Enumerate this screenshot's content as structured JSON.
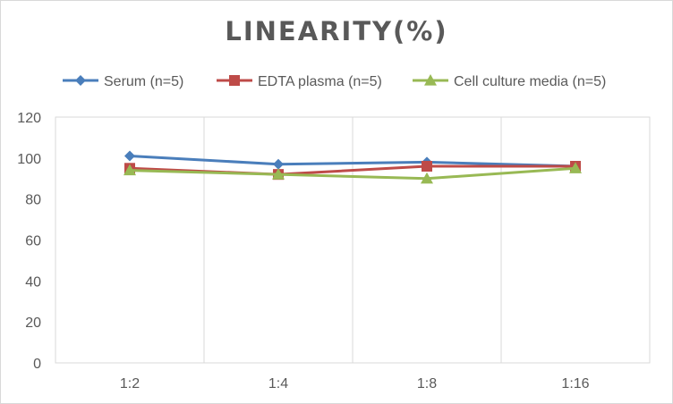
{
  "chart_data": {
    "type": "line",
    "title": "LINEARITY(%)",
    "xlabel": "",
    "ylabel": "",
    "categories": [
      "1:2",
      "1:4",
      "1:8",
      "1:16"
    ],
    "ylim": [
      0,
      120
    ],
    "yticks": [
      0,
      20,
      40,
      60,
      80,
      100,
      120
    ],
    "grid": "vertical",
    "legend_position": "top",
    "series": [
      {
        "name": "Serum (n=5)",
        "values": [
          101,
          97,
          98,
          96
        ],
        "color": "#4a7ebb",
        "marker": "diamond"
      },
      {
        "name": "EDTA plasma (n=5)",
        "values": [
          95,
          92,
          96,
          96
        ],
        "color": "#be4b48",
        "marker": "square"
      },
      {
        "name": "Cell culture media (n=5)",
        "values": [
          94,
          92,
          90,
          95
        ],
        "color": "#98b954",
        "marker": "triangle"
      }
    ]
  }
}
